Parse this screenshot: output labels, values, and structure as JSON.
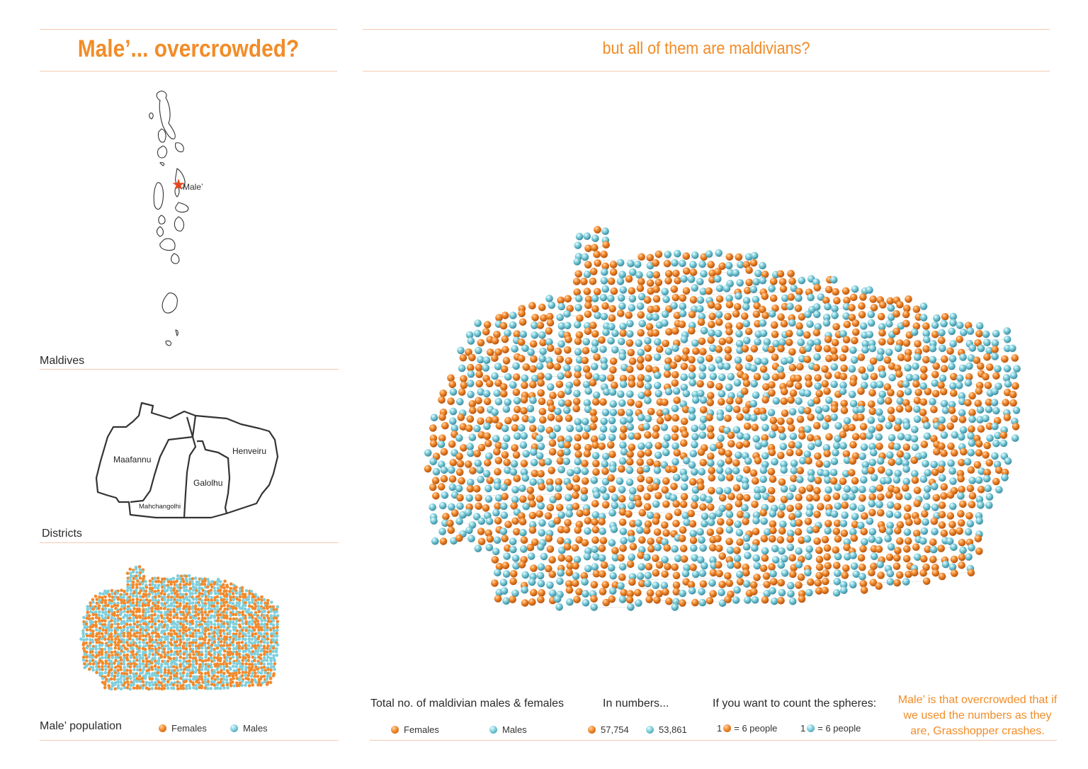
{
  "titles": {
    "left": "Male’... overcrowded?",
    "right": "but all of them are maldivians?"
  },
  "maldives_map": {
    "caption": "Maldives",
    "marker_label": "Male’",
    "marker_color": "#e8451c"
  },
  "districts_map": {
    "caption": "Districts",
    "districts": [
      "Maafannu",
      "Mahchangolhi",
      "Galolhu",
      "Henveiru"
    ]
  },
  "population_thumb": {
    "caption": "Male’ population",
    "legend": {
      "females": "Females",
      "males": "Males"
    }
  },
  "bottom_panel": {
    "total_heading": "Total no. of maldivian males & females",
    "total_legend": {
      "females": "Females",
      "males": "Males"
    },
    "numbers_heading": "In numbers...",
    "females_count": "57,754",
    "males_count": "53,861",
    "count_heading": "If you want to count the spheres:",
    "females_sphere_prefix": "1",
    "females_sphere_value": "= 6 people",
    "males_sphere_prefix": "1",
    "males_sphere_value": "= 6 people",
    "note": "Male’ is that overcrowded that if we used the numbers as they are, Grasshopper crashes."
  },
  "colors": {
    "accent": "#f28c28",
    "female": "#f28a2c",
    "male": "#7fcfdc",
    "rule": "#f4c8b0"
  }
}
